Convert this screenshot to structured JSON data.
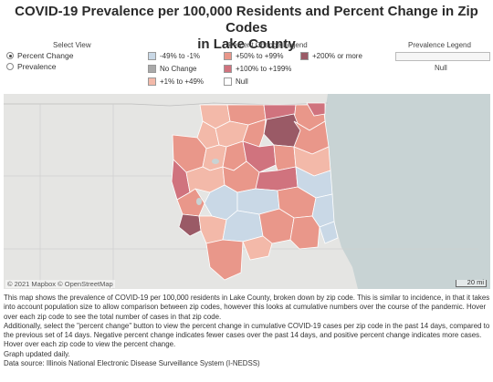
{
  "title_line1": "COVID-19 Prevalence per 100,000 Residents and Percent Change in Zip Codes",
  "title_line2": "in Lake County",
  "select_view": {
    "label": "Select View",
    "options": [
      "Percent Change",
      "Prevalence"
    ],
    "selected": "Percent Change"
  },
  "percent_legend": {
    "label": "Percent Change Legend",
    "items": [
      {
        "label": "-49% to -1%",
        "color": "#c9d8e6"
      },
      {
        "label": "No Change",
        "color": "#a9a9a9"
      },
      {
        "label": "+1% to +49%",
        "color": "#f3b9a9"
      },
      {
        "label": "+50% to +99%",
        "color": "#e9978a"
      },
      {
        "label": "+100% to +199%",
        "color": "#d0737e"
      },
      {
        "label": "+200% or more",
        "color": "#9a5a66"
      },
      {
        "label": "Null",
        "color": "#ffffff"
      }
    ]
  },
  "prevalence_legend": {
    "label": "Prevalence Legend",
    "null_label": "Null"
  },
  "map": {
    "attribution": "© 2021 Mapbox  © OpenStreetMap",
    "scale_label": "20 mi",
    "water_color": "#c8d3d4",
    "land_color": "#e5e5e3"
  },
  "description": [
    "This map shows the prevalence of COVID-19 per 100,000 residents in Lake County, broken down by zip code. This is similar to incidence, in that it takes into account population size to allow comparison between zip codes, however this looks at cumulative numbers over the course of the pandemic. Hover over each zip code to see the total number of cases in that zip code.",
    "Additionally, select the \"percent change\" button to view the percent change in cumulative COVID-19 cases per zip code in the past 14 days, compared to the previous set of 14 days. Negative percent change indicates fewer cases over the past 14 days, and positive percent change indicates more cases. Hover over each zip code to view the percent change.",
    "Graph updated daily.",
    "Data source: Illinois National Electronic Disease Surveillance System (I-NEDSS)"
  ]
}
